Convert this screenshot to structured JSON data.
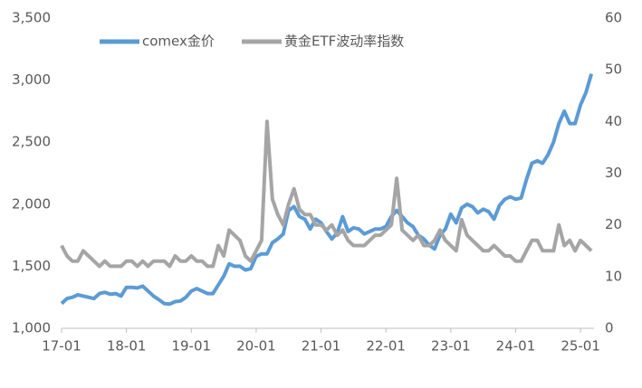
{
  "chart_data": {
    "type": "line",
    "categories": [
      "17-01",
      null,
      null,
      null,
      null,
      null,
      null,
      null,
      null,
      null,
      null,
      null,
      "18-01",
      null,
      null,
      null,
      null,
      null,
      null,
      null,
      null,
      null,
      null,
      null,
      "19-01",
      null,
      null,
      null,
      null,
      null,
      null,
      null,
      null,
      null,
      null,
      null,
      "20-01",
      null,
      null,
      null,
      null,
      null,
      null,
      null,
      null,
      null,
      null,
      null,
      "21-01",
      null,
      null,
      null,
      null,
      null,
      null,
      null,
      null,
      null,
      null,
      null,
      "22-01",
      null,
      null,
      null,
      null,
      null,
      null,
      null,
      null,
      null,
      null,
      null,
      "23-01",
      null,
      null,
      null,
      null,
      null,
      null,
      null,
      null,
      null,
      null,
      null,
      "24-01",
      null,
      null,
      null,
      null,
      null,
      null,
      null,
      null,
      null,
      null,
      null,
      "25-01",
      null,
      null
    ],
    "series": [
      {
        "name": "comex金价",
        "color": "#5b9bd5",
        "axis": "y",
        "values": [
          1200,
          1240,
          1250,
          1270,
          1260,
          1250,
          1240,
          1280,
          1290,
          1275,
          1280,
          1260,
          1330,
          1330,
          1325,
          1340,
          1300,
          1260,
          1230,
          1200,
          1195,
          1215,
          1220,
          1250,
          1300,
          1320,
          1300,
          1280,
          1280,
          1350,
          1420,
          1520,
          1500,
          1500,
          1470,
          1480,
          1580,
          1600,
          1600,
          1690,
          1720,
          1760,
          1950,
          1980,
          1900,
          1880,
          1800,
          1880,
          1850,
          1780,
          1720,
          1770,
          1900,
          1780,
          1810,
          1800,
          1760,
          1780,
          1800,
          1800,
          1820,
          1900,
          1950,
          1900,
          1850,
          1820,
          1750,
          1720,
          1670,
          1640,
          1750,
          1800,
          1920,
          1850,
          1970,
          2000,
          1980,
          1930,
          1960,
          1940,
          1880,
          1990,
          2040,
          2060,
          2040,
          2050,
          2200,
          2330,
          2350,
          2330,
          2400,
          2500,
          2650,
          2750,
          2650,
          2650,
          2800,
          2900,
          3050
        ]
      },
      {
        "name": "黄金ETF波动率指数",
        "color": "#a5a5a5",
        "axis": "y2",
        "values": [
          16,
          14,
          13,
          13,
          15,
          14,
          13,
          12,
          13,
          12,
          12,
          12,
          13,
          13,
          12,
          13,
          12,
          13,
          13,
          13,
          12,
          14,
          13,
          13,
          14,
          13,
          13,
          12,
          12,
          16,
          14,
          19,
          18,
          17,
          14,
          13,
          15,
          17,
          40,
          25,
          22,
          20,
          24,
          27,
          23,
          22,
          22,
          20,
          20,
          19,
          20,
          18,
          19,
          17,
          16,
          16,
          16,
          17,
          18,
          18,
          19,
          20,
          29,
          19,
          18,
          17,
          18,
          16,
          16,
          17,
          19,
          17,
          16,
          15,
          21,
          18,
          17,
          16,
          15,
          15,
          16,
          15,
          14,
          14,
          13,
          13,
          15,
          17,
          17,
          15,
          15,
          15,
          20,
          16,
          17,
          15,
          17,
          16,
          15
        ]
      }
    ],
    "ylim": [
      1000,
      3500
    ],
    "yticks": [
      {
        "value": 1000,
        "label": "1,000"
      },
      {
        "value": 1500,
        "label": "1,500"
      },
      {
        "value": 2000,
        "label": "2,000"
      },
      {
        "value": 2500,
        "label": "2,500"
      },
      {
        "value": 3000,
        "label": "3,000"
      },
      {
        "value": 3500,
        "label": "3,500"
      }
    ],
    "y2lim": [
      0,
      60
    ],
    "y2ticks": [
      0,
      10,
      20,
      30,
      40,
      50,
      60
    ],
    "grid": false,
    "legend": "top"
  }
}
